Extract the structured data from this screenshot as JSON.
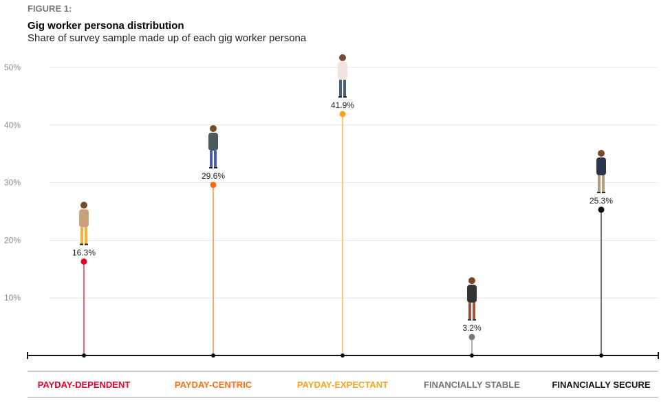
{
  "figure_label": "FIGURE 1:",
  "chart_data": {
    "type": "lollipop",
    "title": "Gig worker persona distribution",
    "subtitle": "Share of survey sample made up of each gig worker persona",
    "categories": [
      "PAYDAY-DEPENDENT",
      "PAYDAY-CENTRIC",
      "PAYDAY-EXPECTANT",
      "FINANCIALLY STABLE",
      "FINANCIALLY SECURE"
    ],
    "values": [
      16.3,
      29.6,
      41.9,
      3.2,
      25.3
    ],
    "data_labels": [
      "16.3%",
      "29.6%",
      "41.9%",
      "3.2%",
      "25.3%"
    ],
    "colors": [
      "#e4002b",
      "#ff6a13",
      "#f7a21b",
      "#777777",
      "#111111"
    ],
    "yticks": [
      10,
      20,
      30,
      40,
      50
    ],
    "ytick_labels": [
      "10%",
      "20%",
      "30%",
      "40%",
      "50%"
    ],
    "ylim": [
      0,
      50
    ],
    "grid": true,
    "icons": [
      "person-illustration",
      "person-illustration",
      "person-illustration",
      "person-illustration",
      "person-illustration"
    ]
  }
}
